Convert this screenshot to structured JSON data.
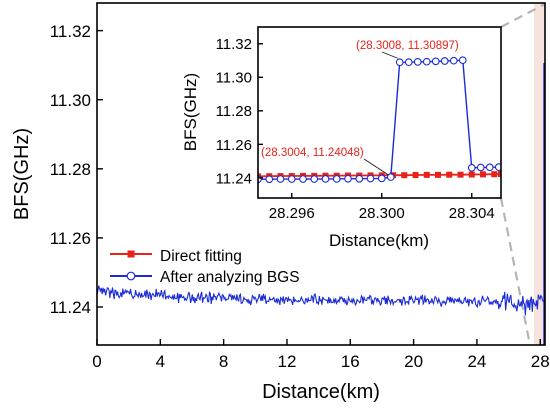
{
  "chart_data": [
    {
      "type": "line",
      "role": "main",
      "xlabel": "Distance(km)",
      "ylabel": "BFS(GHz)",
      "xlim": [
        0,
        28.3
      ],
      "ylim": [
        11.229,
        11.328
      ],
      "xticks": [
        0,
        4,
        8,
        12,
        16,
        20,
        24,
        28
      ],
      "xtick_labels": [
        "0",
        "4",
        "8",
        "12",
        "16",
        "20",
        "24",
        "28"
      ],
      "yticks": [
        11.24,
        11.26,
        11.28,
        11.3,
        11.32
      ],
      "ytick_labels": [
        "11.24",
        "11.26",
        "11.28",
        "11.30",
        "11.32"
      ],
      "legend_position": "lower-left",
      "highlight_region": {
        "x": [
          27.6,
          28.3
        ],
        "color": "#f3d9d2"
      },
      "series": [
        {
          "name": "Direct fitting",
          "color": "#e8221b",
          "marker": "filled-square",
          "x": [],
          "y": []
        },
        {
          "name": "After analyzing BGS",
          "color": "#1c2bd6",
          "marker": "open-circle",
          "x": [
            0,
            1,
            2,
            3,
            4,
            5,
            6,
            7,
            8,
            9,
            10,
            11,
            12,
            13,
            14,
            15,
            16,
            17,
            18,
            19,
            20,
            21,
            22,
            23,
            24,
            25,
            26,
            27,
            27.8,
            28.2
          ],
          "y": [
            11.2445,
            11.2442,
            11.2438,
            11.2436,
            11.2433,
            11.243,
            11.2428,
            11.2426,
            11.2425,
            11.2424,
            11.2423,
            11.2422,
            11.2421,
            11.242,
            11.242,
            11.242,
            11.242,
            11.242,
            11.2419,
            11.2419,
            11.2419,
            11.2419,
            11.2418,
            11.2418,
            11.2416,
            11.2414,
            11.241,
            11.2405,
            11.241,
            11.2415
          ]
        }
      ]
    },
    {
      "type": "line",
      "role": "inset",
      "xlabel": "Distance(km)",
      "ylabel": "BFS(GHz)",
      "xlim": [
        28.2945,
        28.3053
      ],
      "ylim": [
        11.228,
        11.33
      ],
      "xticks": [
        28.296,
        28.3,
        28.304
      ],
      "xtick_labels": [
        "28.296",
        "28.300",
        "28.304"
      ],
      "yticks": [
        11.24,
        11.26,
        11.28,
        11.3,
        11.32
      ],
      "ytick_labels": [
        "11.24",
        "11.26",
        "11.28",
        "11.30",
        "11.32"
      ],
      "annotations": [
        {
          "text": "(28.3008, 11.30897)",
          "x": 28.3008,
          "y": 11.30897,
          "color": "#e8221b"
        },
        {
          "text": "(28.3004, 11.24048)",
          "x": 28.3004,
          "y": 11.24048,
          "color": "#e8221b"
        }
      ],
      "series": [
        {
          "name": "Direct fitting",
          "color": "#e8221b",
          "marker": "filled-square",
          "x": [
            28.2945,
            28.295,
            28.2955,
            28.296,
            28.2965,
            28.297,
            28.2975,
            28.298,
            28.2985,
            28.299,
            28.2995,
            28.3,
            28.3005,
            28.301,
            28.3015,
            28.302,
            28.3025,
            28.303,
            28.3035,
            28.304,
            28.3045,
            28.305,
            28.3053
          ],
          "y": [
            11.2409,
            11.241,
            11.2411,
            11.2411,
            11.2412,
            11.2412,
            11.2413,
            11.2413,
            11.2414,
            11.2414,
            11.2415,
            11.2415,
            11.2416,
            11.2416,
            11.2417,
            11.2418,
            11.2418,
            11.2419,
            11.2419,
            11.242,
            11.2421,
            11.2422,
            11.2423
          ]
        },
        {
          "name": "After analyzing BGS",
          "color": "#1c2bd6",
          "marker": "open-circle",
          "x": [
            28.2945,
            28.295,
            28.2955,
            28.296,
            28.2965,
            28.297,
            28.2975,
            28.298,
            28.2985,
            28.299,
            28.2995,
            28.3,
            28.3004,
            28.3008,
            28.3012,
            28.3016,
            28.302,
            28.3024,
            28.3028,
            28.3032,
            28.3036,
            28.304,
            28.3044,
            28.3048,
            28.3052
          ],
          "y": [
            11.2392,
            11.2392,
            11.2393,
            11.2393,
            11.2393,
            11.2393,
            11.2394,
            11.2394,
            11.2395,
            11.2395,
            11.2396,
            11.2397,
            11.24048,
            11.30897,
            11.309,
            11.3092,
            11.3093,
            11.3095,
            11.3097,
            11.3099,
            11.3102,
            11.246,
            11.2462,
            11.2463,
            11.2464
          ]
        }
      ]
    }
  ]
}
